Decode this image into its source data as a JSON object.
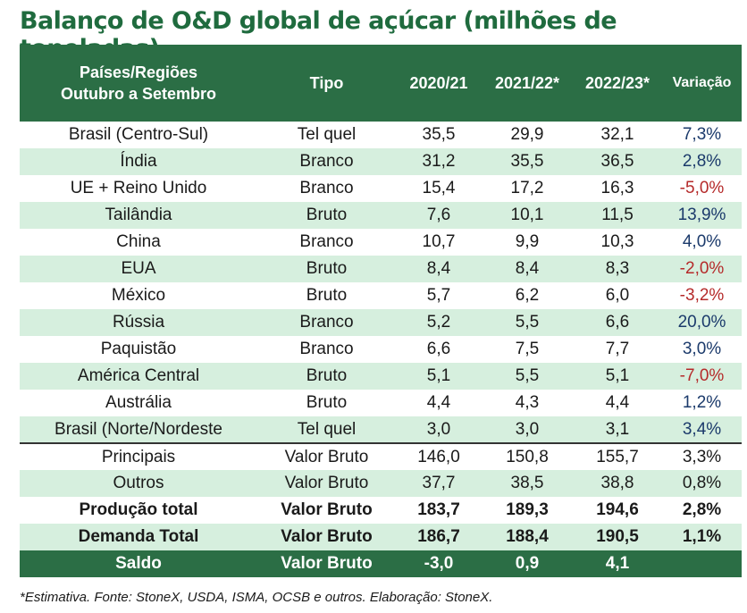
{
  "title": "Balanço de O&D global de açúcar (milhões de toneladas)",
  "header": {
    "col0_line1": "Países/Regiões",
    "col0_line2": "Outubro a Setembro",
    "col1": "Tipo",
    "col2": "2020/21",
    "col3": "2021/22*",
    "col4": "2022/23*",
    "col5": "Variação"
  },
  "rows": [
    {
      "region": "Brasil (Centro-Sul)",
      "tipo": "Tel quel",
      "y2020": "35,5",
      "y2021": "29,9",
      "y2022": "32,1",
      "var": "7,3%",
      "neg": false
    },
    {
      "region": "Índia",
      "tipo": "Branco",
      "y2020": "31,2",
      "y2021": "35,5",
      "y2022": "36,5",
      "var": "2,8%",
      "neg": false
    },
    {
      "region": "UE + Reino Unido",
      "tipo": "Branco",
      "y2020": "15,4",
      "y2021": "17,2",
      "y2022": "16,3",
      "var": "-5,0%",
      "neg": true
    },
    {
      "region": "Tailândia",
      "tipo": "Bruto",
      "y2020": "7,6",
      "y2021": "10,1",
      "y2022": "11,5",
      "var": "13,9%",
      "neg": false
    },
    {
      "region": "China",
      "tipo": "Branco",
      "y2020": "10,7",
      "y2021": "9,9",
      "y2022": "10,3",
      "var": "4,0%",
      "neg": false
    },
    {
      "region": "EUA",
      "tipo": "Bruto",
      "y2020": "8,4",
      "y2021": "8,4",
      "y2022": "8,3",
      "var": "-2,0%",
      "neg": true
    },
    {
      "region": "México",
      "tipo": "Bruto",
      "y2020": "5,7",
      "y2021": "6,2",
      "y2022": "6,0",
      "var": "-3,2%",
      "neg": true
    },
    {
      "region": "Rússia",
      "tipo": "Branco",
      "y2020": "5,2",
      "y2021": "5,5",
      "y2022": "6,6",
      "var": "20,0%",
      "neg": false
    },
    {
      "region": "Paquistão",
      "tipo": "Branco",
      "y2020": "6,6",
      "y2021": "7,5",
      "y2022": "7,7",
      "var": "3,0%",
      "neg": false
    },
    {
      "region": "América Central",
      "tipo": "Bruto",
      "y2020": "5,1",
      "y2021": "5,5",
      "y2022": "5,1",
      "var": "-7,0%",
      "neg": true
    },
    {
      "region": "Austrália",
      "tipo": "Bruto",
      "y2020": "4,4",
      "y2021": "4,3",
      "y2022": "4,4",
      "var": "1,2%",
      "neg": false
    },
    {
      "region": "Brasil (Norte/Nordeste",
      "tipo": "Tel quel",
      "y2020": "3,0",
      "y2021": "3,0",
      "y2022": "3,1",
      "var": "3,4%",
      "neg": false
    }
  ],
  "summary": [
    {
      "region": "Principais",
      "tipo": "Valor Bruto",
      "y2020": "146,0",
      "y2021": "150,8",
      "y2022": "155,7",
      "var": "3,3%"
    },
    {
      "region": "Outros",
      "tipo": "Valor Bruto",
      "y2020": "37,7",
      "y2021": "38,5",
      "y2022": "38,8",
      "var": "0,8%"
    },
    {
      "region": "Produção total",
      "tipo": "Valor Bruto",
      "y2020": "183,7",
      "y2021": "189,3",
      "y2022": "194,6",
      "var": "2,8%"
    },
    {
      "region": "Demanda Total",
      "tipo": "Valor Bruto",
      "y2020": "186,7",
      "y2021": "188,4",
      "y2022": "190,5",
      "var": "1,1%"
    }
  ],
  "saldo": {
    "region": "Saldo",
    "tipo": "Valor Bruto",
    "y2020": "-3,0",
    "y2021": "0,9",
    "y2022": "4,1",
    "var": ""
  },
  "footnote": "*Estimativa. Fonte: StoneX, USDA, ISMA, OCSB e outros. Elaboração: StoneX.",
  "colors": {
    "header_green": "#2b6e45",
    "row_alt": "#d6efde",
    "negative": "#b52a2a",
    "positive": "#1b3a6b",
    "title": "#1f6b3e"
  }
}
